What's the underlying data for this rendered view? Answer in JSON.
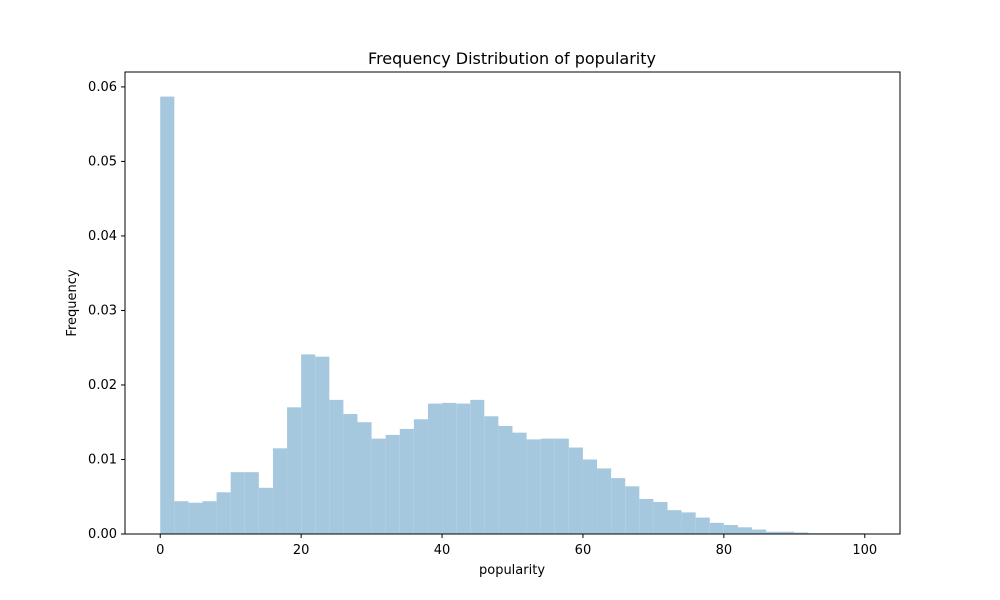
{
  "chart_data": {
    "type": "bar",
    "title": "Frequency Distribution of popularity",
    "xlabel": "popularity",
    "ylabel": "Frequency",
    "xlim": [
      -5,
      105
    ],
    "ylim": [
      0,
      0.062
    ],
    "xticks": [
      0,
      20,
      40,
      60,
      80,
      100
    ],
    "yticks": [
      0.0,
      0.01,
      0.02,
      0.03,
      0.04,
      0.05,
      0.06
    ],
    "ytick_labels": [
      "0.00",
      "0.01",
      "0.02",
      "0.03",
      "0.04",
      "0.05",
      "0.06"
    ],
    "bar_color": "#a6c8df",
    "bin_edges": [
      0,
      2,
      4,
      6,
      8,
      10,
      12,
      14,
      16,
      18,
      20,
      22,
      24,
      26,
      28,
      30,
      32,
      34,
      36,
      38,
      40,
      42,
      44,
      46,
      48,
      50,
      52,
      54,
      56,
      58,
      60,
      62,
      64,
      66,
      68,
      70,
      72,
      74,
      76,
      78,
      80,
      82,
      84,
      86,
      88,
      90,
      92,
      94,
      96,
      98,
      100
    ],
    "values": [
      0.0587,
      0.0044,
      0.0042,
      0.0044,
      0.0056,
      0.0083,
      0.0083,
      0.0062,
      0.0115,
      0.017,
      0.0241,
      0.0238,
      0.018,
      0.0161,
      0.015,
      0.0128,
      0.0133,
      0.0141,
      0.0154,
      0.0175,
      0.0176,
      0.0175,
      0.018,
      0.0158,
      0.0145,
      0.0136,
      0.0127,
      0.0128,
      0.0128,
      0.0116,
      0.01,
      0.0088,
      0.0075,
      0.0064,
      0.0047,
      0.0043,
      0.0032,
      0.0029,
      0.0022,
      0.0015,
      0.0012,
      0.0009,
      0.0006,
      0.0003,
      0.0003,
      0.0002,
      0.0001,
      0.0001,
      0.0001,
      0.0001
    ]
  }
}
